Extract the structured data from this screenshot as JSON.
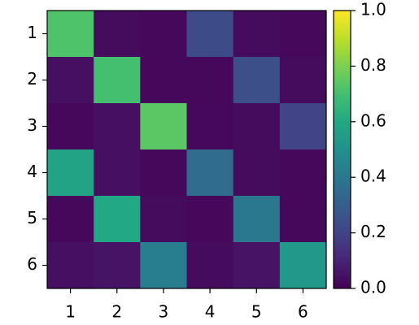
{
  "chart_data": {
    "type": "heatmap",
    "x_categories": [
      "1",
      "2",
      "3",
      "4",
      "5",
      "6"
    ],
    "y_categories": [
      "1",
      "2",
      "3",
      "4",
      "5",
      "6"
    ],
    "z": [
      [
        0.72,
        0.03,
        0.02,
        0.23,
        0.03,
        0.02
      ],
      [
        0.04,
        0.7,
        0.02,
        0.02,
        0.24,
        0.03
      ],
      [
        0.02,
        0.04,
        0.74,
        0.02,
        0.03,
        0.2
      ],
      [
        0.58,
        0.04,
        0.02,
        0.35,
        0.03,
        0.02
      ],
      [
        0.02,
        0.6,
        0.03,
        0.02,
        0.4,
        0.02
      ],
      [
        0.04,
        0.05,
        0.42,
        0.03,
        0.05,
        0.53
      ]
    ],
    "colormap": "viridis",
    "zlim": [
      0,
      1
    ],
    "zticks": [
      {
        "value": 0,
        "label": "0.0"
      },
      {
        "value": 0.2,
        "label": "0.2"
      },
      {
        "value": 0.4,
        "label": "0.4"
      },
      {
        "value": 0.6,
        "label": "0.6"
      },
      {
        "value": 0.8,
        "label": "0.8"
      },
      {
        "value": 1,
        "label": "1.0"
      }
    ]
  }
}
